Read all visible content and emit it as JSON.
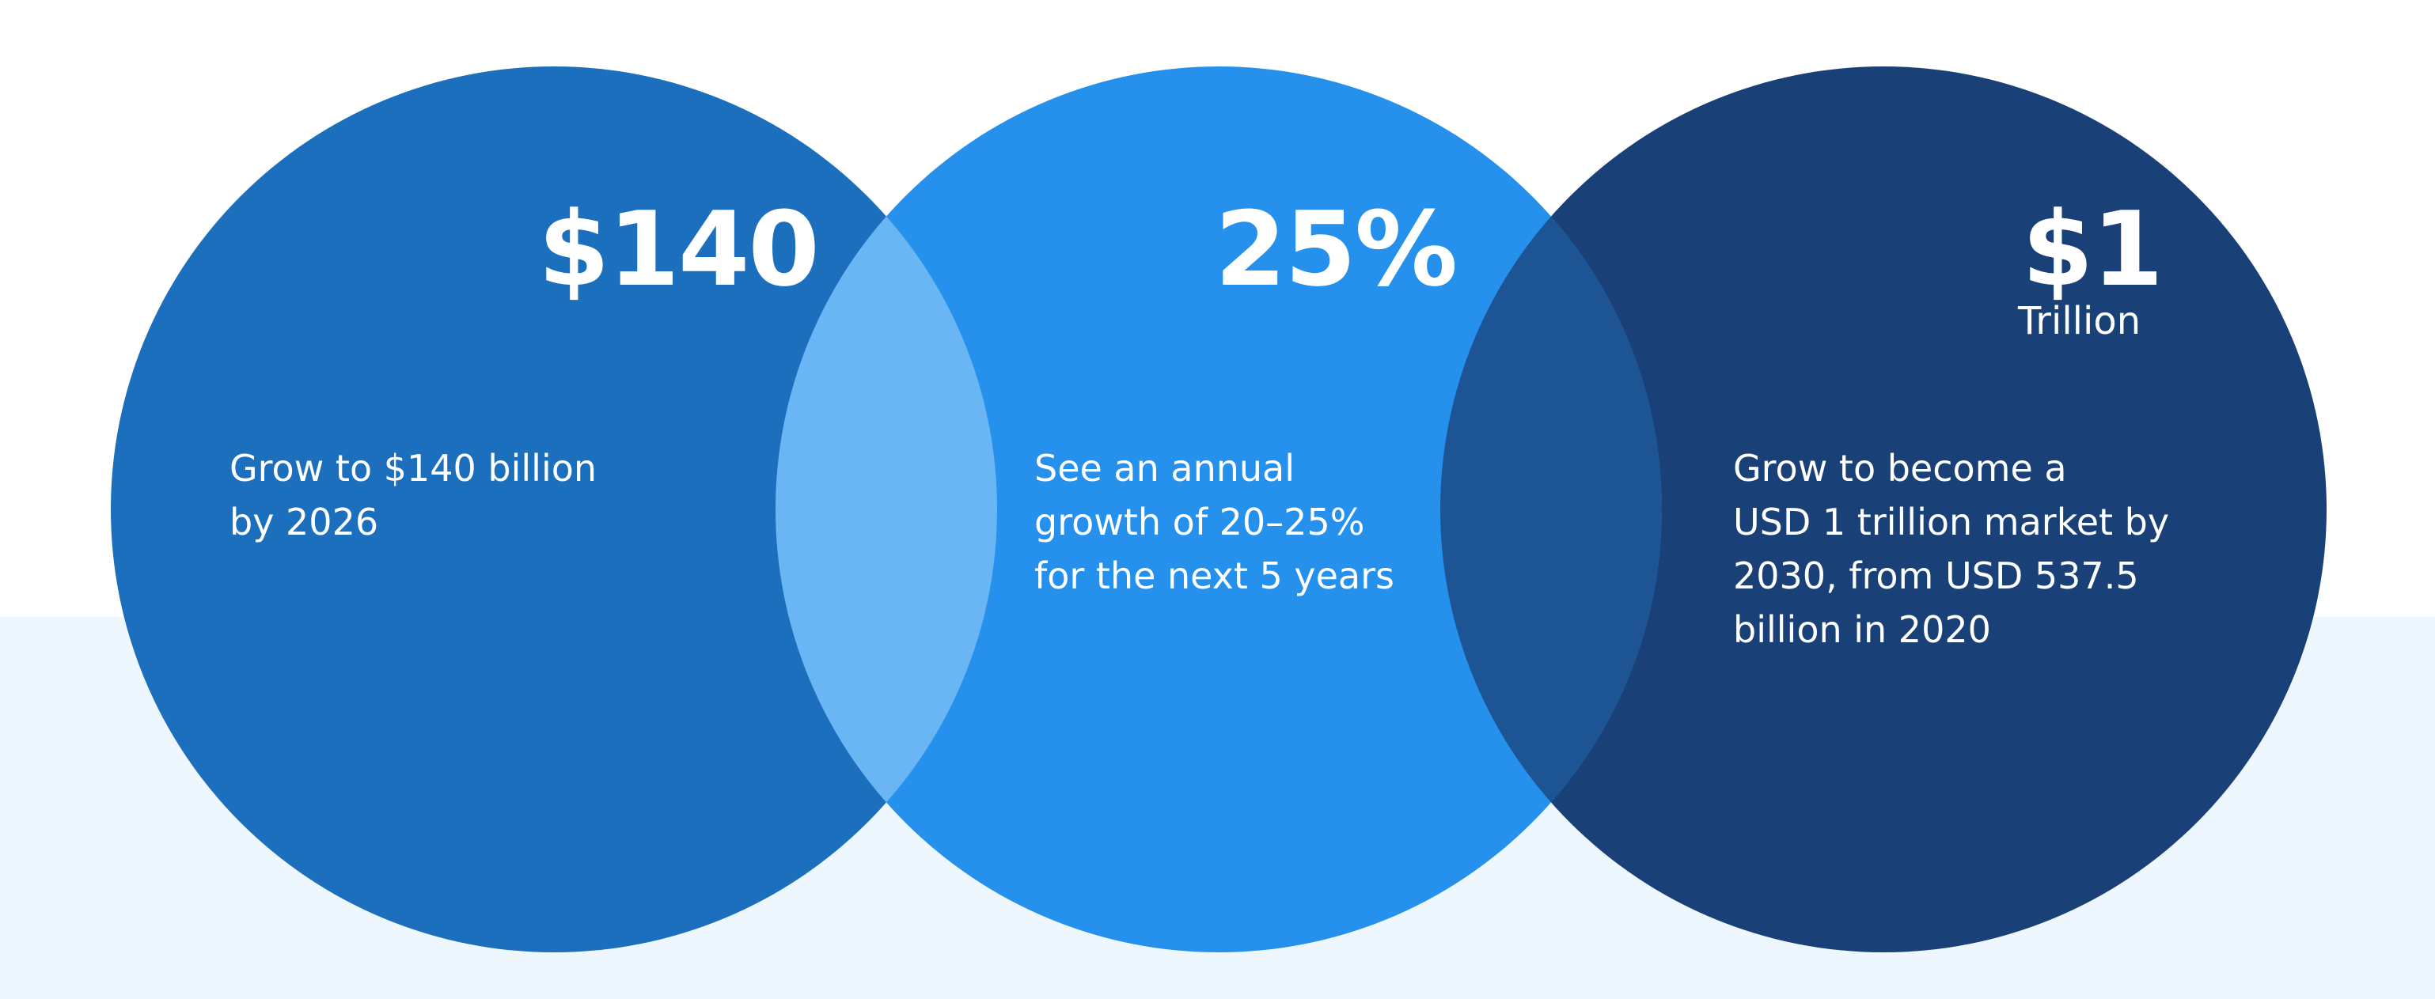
{
  "colors": {
    "circle_1": "#1b6fbd",
    "circle_2": "#2591ec",
    "circle_3": "#1a4078",
    "overlap_1_2": "#6ab5f3",
    "overlap_2_3": "#1d5594",
    "background_top": "#ffffff",
    "background_bottom": "#eef7fd",
    "text": "#ffffff"
  },
  "circles": [
    {
      "stat": "$140",
      "stat_sub": "",
      "description": "Grow to $140 billion\nby 2026"
    },
    {
      "stat": "25%",
      "stat_sub": "",
      "description": "See an annual\ngrowth of 20–25%\nfor the next 5 years"
    },
    {
      "stat": "$1",
      "stat_sub": "Trillion",
      "description": "Grow to become a\nUSD 1 trillion market by\n2030, from USD 537.5\nbillion in 2020"
    }
  ]
}
